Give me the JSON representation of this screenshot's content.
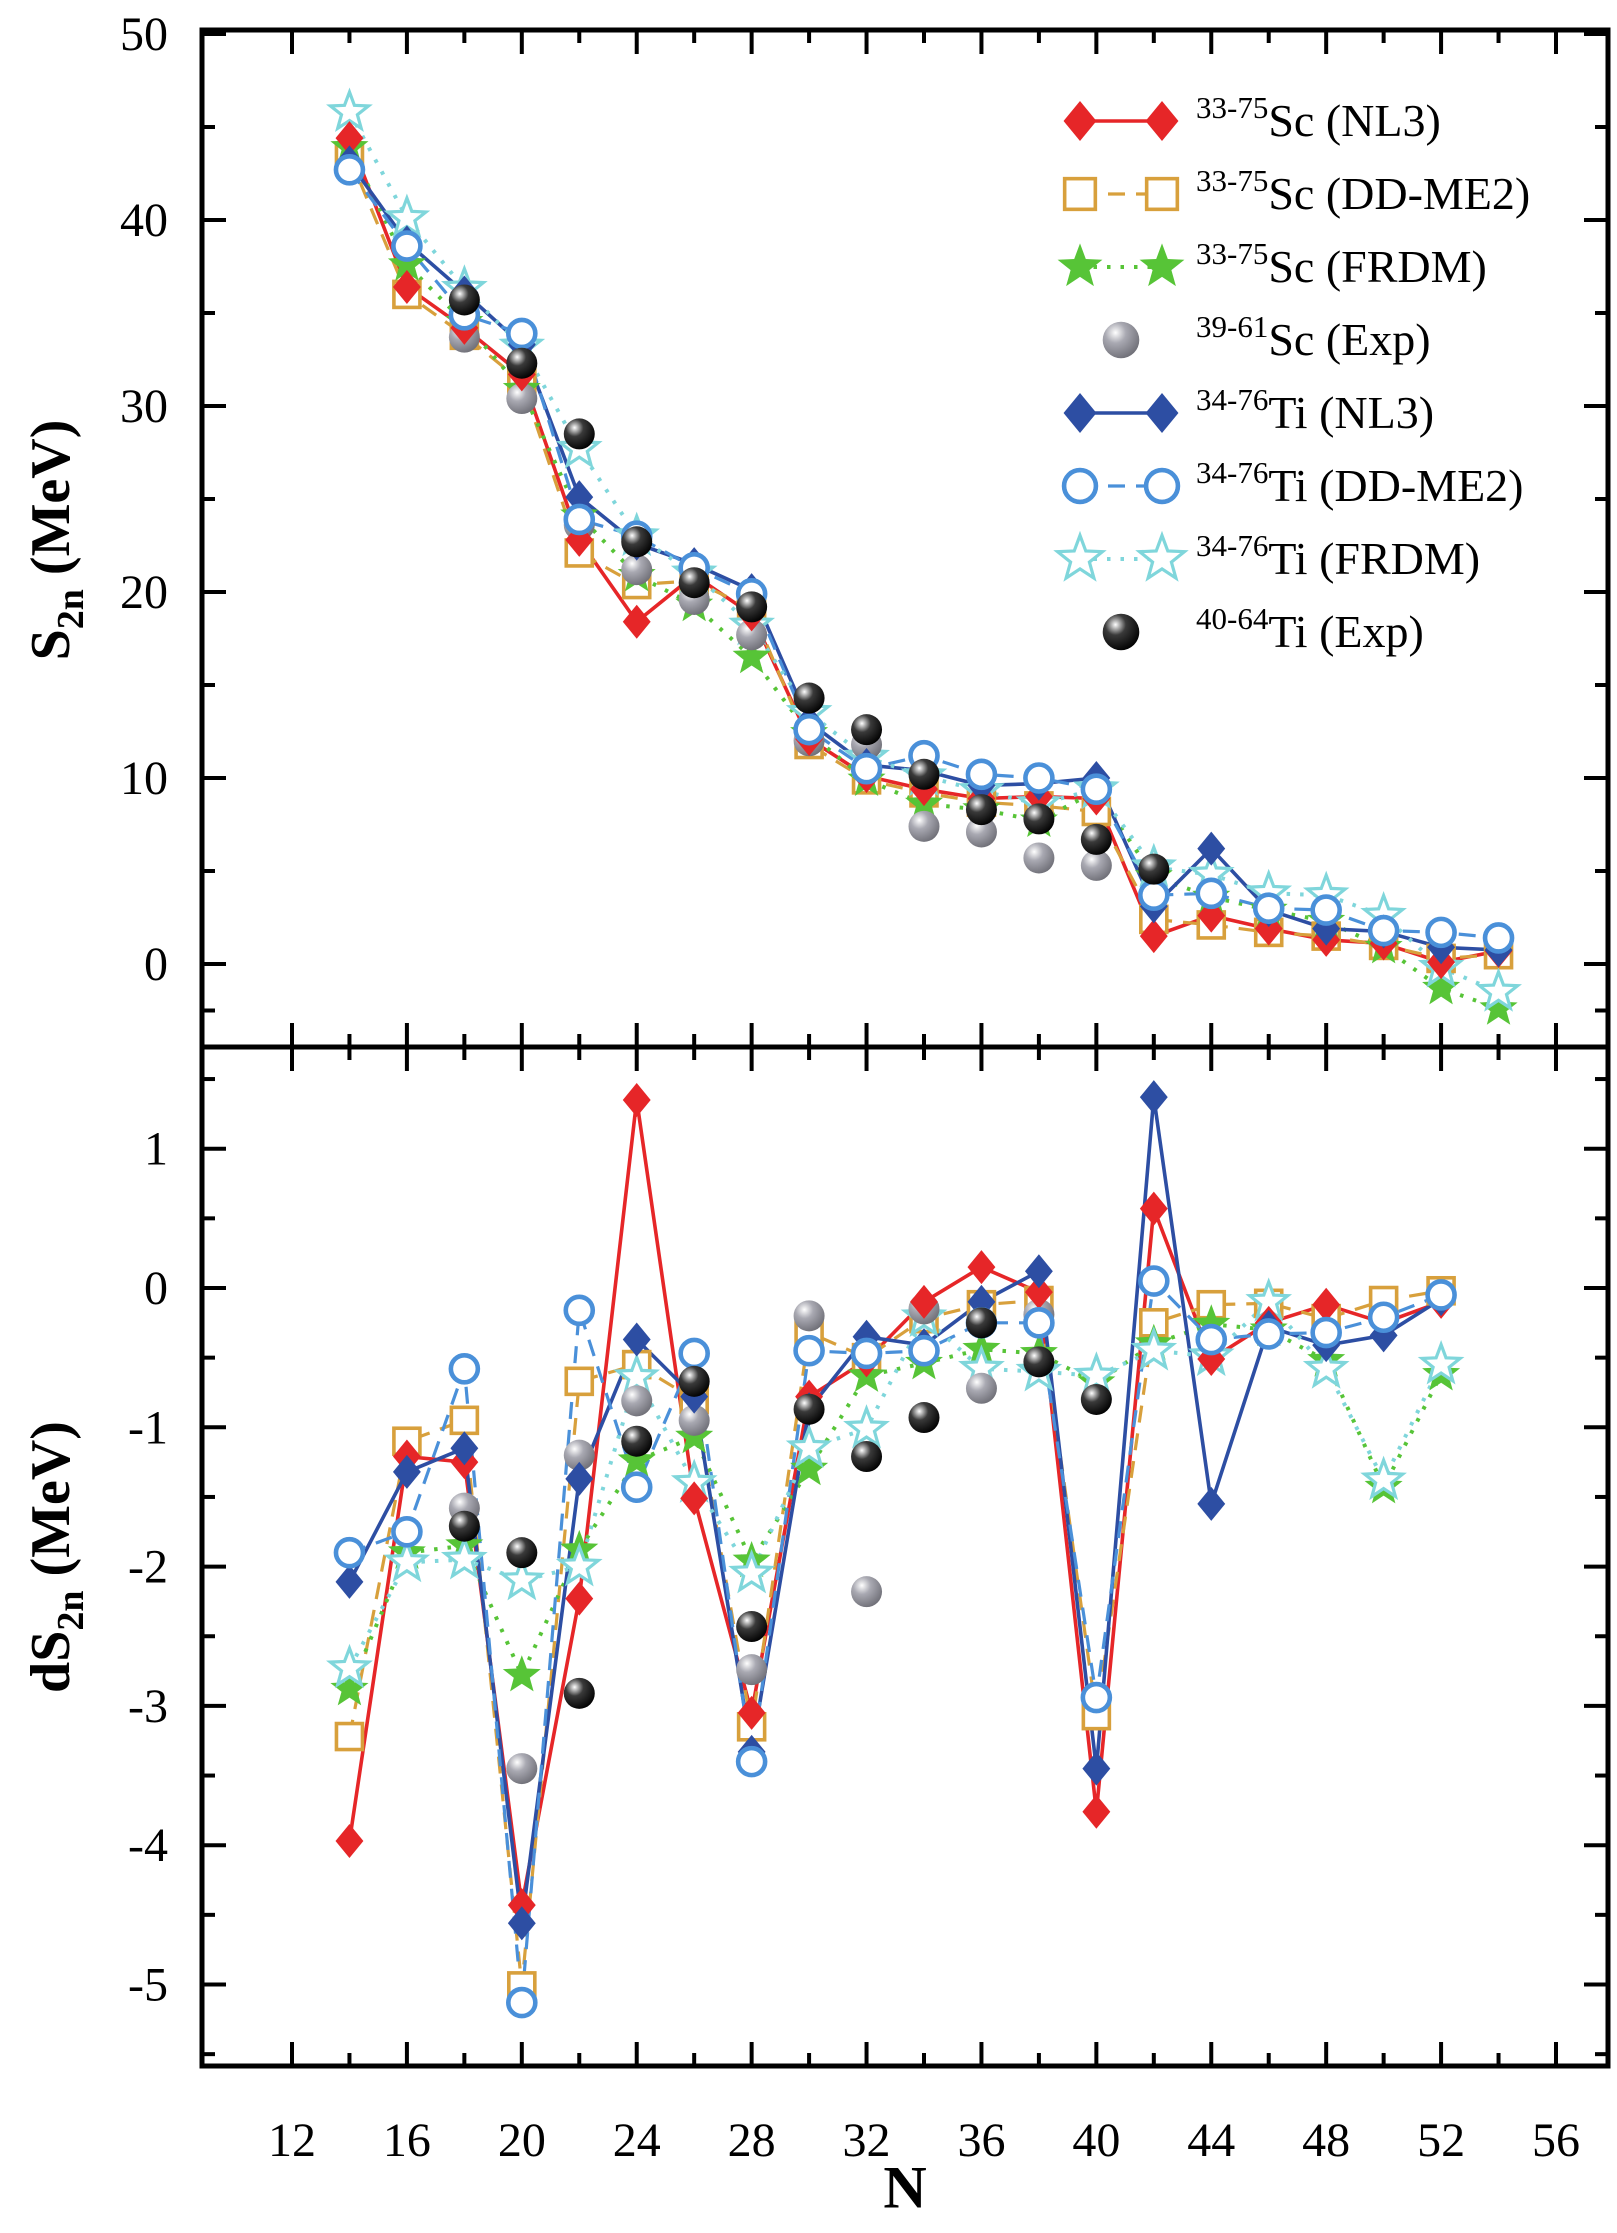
{
  "figure": {
    "x_title": "N",
    "top_y_title": {
      "main": "S",
      "sub": "2n",
      "unit": " (MeV)"
    },
    "bottom_y_title": {
      "main": "dS",
      "sub": "2n",
      "unit": " (MeV)"
    },
    "x_ticks": [
      12,
      16,
      20,
      24,
      28,
      32,
      36,
      40,
      44,
      48,
      52,
      56
    ],
    "top_y_ticks": [
      0,
      10,
      20,
      30,
      40,
      50
    ],
    "bottom_y_ticks": [
      1,
      0,
      -1,
      -2,
      -3,
      -4,
      -5
    ]
  },
  "legend": {
    "items": [
      {
        "sup": "33-75",
        "base": "Sc (NL3)"
      },
      {
        "sup": "33-75",
        "base": "Sc (DD-ME2)"
      },
      {
        "sup": "33-75",
        "base": "Sc (FRDM)"
      },
      {
        "sup": "39-61",
        "base": "Sc (Exp)"
      },
      {
        "sup": "34-76",
        "base": "Ti (NL3)"
      },
      {
        "sup": "34-76",
        "base": "Ti (DD-ME2)"
      },
      {
        "sup": "34-76",
        "base": "Ti (FRDM)"
      },
      {
        "sup": "40-64",
        "base": "Ti (Exp)"
      }
    ]
  },
  "chart_data": [
    {
      "panel": "top",
      "type": "line",
      "title": "",
      "xlabel": "N",
      "ylabel": "S2n (MeV)",
      "xlim": [
        12,
        56
      ],
      "ylim": [
        -4.4,
        50
      ],
      "grid": false,
      "legend_position": "upper right",
      "series": [
        {
          "name": "Sc-NL3",
          "marker": "diamond-filled",
          "color": "#e62628",
          "line": "solid",
          "x": [
            14,
            16,
            18,
            20,
            22,
            24,
            26,
            28,
            30,
            32,
            34,
            36,
            38,
            40,
            42,
            44,
            46,
            48,
            50,
            52,
            54
          ],
          "y": [
            44.4,
            36.4,
            34.2,
            31.7,
            22.8,
            18.4,
            20.9,
            18.8,
            12.1,
            10.1,
            9.4,
            8.9,
            9.0,
            8.9,
            1.5,
            2.6,
            1.9,
            1.3,
            1.1,
            0.1,
            0.7
          ]
        },
        {
          "name": "Sc-DDME2",
          "marker": "square-open",
          "color": "#d8a03c",
          "line": "dashed",
          "x": [
            14,
            16,
            18,
            20,
            22,
            24,
            26,
            28,
            30,
            32,
            34,
            36,
            38,
            40,
            42,
            44,
            46,
            48,
            50,
            52,
            54
          ],
          "y": [
            43.4,
            36.0,
            33.8,
            31.3,
            22.1,
            20.4,
            20.6,
            19.1,
            11.8,
            9.9,
            9.2,
            8.7,
            8.5,
            8.2,
            2.4,
            2.1,
            1.7,
            1.5,
            1.0,
            0.3,
            0.5
          ]
        },
        {
          "name": "Sc-FRDM",
          "marker": "star-filled",
          "color": "#57c437",
          "line": "dotted",
          "x": [
            14,
            16,
            18,
            20,
            22,
            24,
            26,
            28,
            30,
            32,
            34,
            36,
            38,
            40,
            42,
            44,
            46,
            48,
            50,
            52,
            54
          ],
          "y": [
            43.9,
            37.6,
            34.5,
            30.9,
            24.1,
            20.9,
            19.3,
            16.5,
            12.4,
            9.9,
            8.6,
            8.3,
            7.7,
            9.3,
            4.7,
            3.6,
            2.9,
            2.3,
            0.9,
            -1.3,
            -2.4
          ]
        },
        {
          "name": "Sc-Exp",
          "marker": "sphere-gray",
          "color": "#8a8a94",
          "line": "none",
          "x": [
            18,
            20,
            22,
            24,
            26,
            28,
            30,
            32,
            34,
            36,
            38,
            40
          ],
          "y": [
            33.7,
            30.4,
            23.6,
            21.2,
            19.6,
            17.7,
            12.0,
            11.8,
            7.4,
            7.1,
            5.7,
            5.3
          ]
        },
        {
          "name": "Ti-NL3",
          "marker": "diamond-filled",
          "color": "#2d4ea3",
          "line": "solid",
          "x": [
            14,
            16,
            18,
            20,
            22,
            24,
            26,
            28,
            30,
            32,
            34,
            36,
            38,
            40,
            42,
            44,
            46,
            48,
            50,
            52,
            54
          ],
          "y": [
            43.1,
            38.8,
            36.1,
            33.3,
            25.1,
            22.6,
            21.5,
            20.1,
            13.0,
            10.7,
            10.4,
            9.6,
            9.7,
            10.0,
            3.1,
            6.2,
            2.9,
            1.9,
            1.75,
            0.9,
            0.75
          ]
        },
        {
          "name": "Ti-DDME2",
          "marker": "circle-open",
          "color": "#4a90d9",
          "line": "dashed",
          "x": [
            14,
            16,
            18,
            20,
            22,
            24,
            26,
            28,
            30,
            32,
            34,
            36,
            38,
            40,
            42,
            44,
            46,
            48,
            50,
            52,
            54
          ],
          "y": [
            42.7,
            38.6,
            34.9,
            33.9,
            23.9,
            23.0,
            21.3,
            19.9,
            12.6,
            10.5,
            11.2,
            10.2,
            10.0,
            9.4,
            3.7,
            3.8,
            3.0,
            2.9,
            1.8,
            1.7,
            1.4
          ]
        },
        {
          "name": "Ti-FRDM",
          "marker": "star-open",
          "color": "#7fd6db",
          "line": "dotted",
          "x": [
            14,
            16,
            18,
            20,
            22,
            24,
            26,
            28,
            30,
            32,
            34,
            36,
            38,
            40,
            42,
            44,
            46,
            48,
            50,
            52,
            54
          ],
          "y": [
            45.8,
            40.1,
            36.3,
            33.2,
            27.7,
            23.0,
            21.0,
            18.2,
            13.5,
            11.1,
            10.1,
            9.3,
            8.6,
            9.4,
            5.2,
            4.8,
            3.8,
            3.7,
            2.6,
            -0.2,
            -1.5
          ]
        },
        {
          "name": "Ti-Exp",
          "marker": "sphere-black",
          "color": "#111111",
          "line": "none",
          "x": [
            18,
            20,
            22,
            24,
            26,
            28,
            30,
            32,
            34,
            36,
            38,
            40,
            42
          ],
          "y": [
            35.7,
            32.3,
            28.5,
            22.7,
            20.5,
            19.2,
            14.3,
            12.6,
            10.2,
            8.3,
            7.8,
            6.7,
            5.1
          ]
        }
      ]
    },
    {
      "panel": "bottom",
      "type": "line",
      "title": "",
      "xlabel": "N",
      "ylabel": "dS2n (MeV)",
      "xlim": [
        12,
        56
      ],
      "ylim": [
        -5.6,
        1.7
      ],
      "grid": false,
      "legend_position": "none",
      "series": [
        {
          "name": "Sc-NL3",
          "marker": "diamond-filled",
          "color": "#e62628",
          "line": "solid",
          "x": [
            14,
            16,
            18,
            20,
            22,
            24,
            26,
            28,
            30,
            32,
            34,
            36,
            38,
            40,
            42,
            44,
            46,
            48,
            50,
            52
          ],
          "y": [
            -3.97,
            -1.21,
            -1.25,
            -4.43,
            -2.23,
            1.35,
            -1.51,
            -3.05,
            -0.78,
            -0.52,
            -0.1,
            0.15,
            -0.03,
            -3.76,
            0.57,
            -0.51,
            -0.25,
            -0.12,
            -0.25,
            -0.1
          ]
        },
        {
          "name": "Sc-DDME2",
          "marker": "square-open",
          "color": "#d8a03c",
          "line": "dashed",
          "x": [
            14,
            16,
            18,
            20,
            22,
            24,
            26,
            28,
            30,
            32,
            34,
            36,
            38,
            40,
            42,
            44,
            46,
            48,
            50,
            52
          ],
          "y": [
            -3.22,
            -1.1,
            -0.95,
            -5.01,
            -0.67,
            -0.55,
            -0.8,
            -3.15,
            -0.32,
            -0.5,
            -0.22,
            -0.12,
            -0.09,
            -3.07,
            -0.25,
            -0.12,
            -0.11,
            -0.22,
            -0.09,
            -0.02
          ]
        },
        {
          "name": "Sc-FRDM",
          "marker": "star-filled",
          "color": "#57c437",
          "line": "dotted",
          "x": [
            14,
            16,
            18,
            20,
            22,
            24,
            26,
            28,
            30,
            32,
            34,
            36,
            38,
            40,
            42,
            44,
            46,
            48,
            50,
            52
          ],
          "y": [
            -2.88,
            -1.9,
            -1.85,
            -2.78,
            -1.88,
            -1.24,
            -1.07,
            -1.96,
            -1.3,
            -0.63,
            -0.54,
            -0.44,
            -0.47,
            -0.68,
            -0.4,
            -0.26,
            -0.3,
            -0.52,
            -1.43,
            -0.62
          ]
        },
        {
          "name": "Sc-Exp",
          "marker": "sphere-gray",
          "color": "#8a8a94",
          "line": "none",
          "x": [
            18,
            20,
            22,
            24,
            26,
            28,
            30,
            32,
            34,
            36,
            38
          ],
          "y": [
            -1.58,
            -3.45,
            -1.2,
            -0.81,
            -0.95,
            -2.74,
            -0.2,
            -2.18,
            -0.15,
            -0.72,
            -0.19
          ]
        },
        {
          "name": "Ti-NL3",
          "marker": "diamond-filled",
          "color": "#2d4ea3",
          "line": "solid",
          "x": [
            14,
            16,
            18,
            20,
            22,
            24,
            26,
            28,
            30,
            32,
            34,
            36,
            38,
            40,
            42,
            44,
            46,
            48,
            50,
            52
          ],
          "y": [
            -2.11,
            -1.32,
            -1.15,
            -4.56,
            -1.37,
            -0.37,
            -0.78,
            -3.33,
            -0.87,
            -0.35,
            -0.41,
            -0.1,
            0.12,
            -3.45,
            1.37,
            -1.55,
            -0.28,
            -0.41,
            -0.34,
            -0.08
          ]
        },
        {
          "name": "Ti-DDME2",
          "marker": "circle-open",
          "color": "#4a90d9",
          "line": "dashed",
          "x": [
            14,
            16,
            18,
            20,
            22,
            24,
            26,
            28,
            30,
            32,
            34,
            36,
            38,
            40,
            42,
            44,
            46,
            48,
            50,
            52
          ],
          "y": [
            -1.9,
            -1.75,
            -0.58,
            -5.13,
            -0.16,
            -1.43,
            -0.47,
            -3.4,
            -0.45,
            -0.47,
            -0.45,
            -0.25,
            -0.25,
            -2.94,
            0.05,
            -0.37,
            -0.33,
            -0.32,
            -0.21,
            -0.05
          ]
        },
        {
          "name": "Ti-FRDM",
          "marker": "star-open",
          "color": "#7fd6db",
          "line": "dotted",
          "x": [
            14,
            16,
            18,
            20,
            22,
            24,
            26,
            28,
            30,
            32,
            34,
            36,
            38,
            40,
            42,
            44,
            46,
            48,
            50,
            52
          ],
          "y": [
            -2.73,
            -1.97,
            -1.95,
            -2.1,
            -2.0,
            -0.64,
            -1.4,
            -2.05,
            -1.15,
            -1.01,
            -0.21,
            -0.58,
            -0.6,
            -0.63,
            -0.45,
            -0.49,
            -0.1,
            -0.58,
            -1.38,
            -0.55
          ]
        },
        {
          "name": "Ti-Exp",
          "marker": "sphere-black",
          "color": "#111111",
          "line": "none",
          "x": [
            18,
            20,
            22,
            24,
            26,
            28,
            30,
            32,
            34,
            36,
            38,
            40
          ],
          "y": [
            -1.71,
            -1.9,
            -2.91,
            -1.1,
            -0.67,
            -2.43,
            -0.87,
            -1.21,
            -0.93,
            -0.25,
            -0.53,
            -0.8
          ]
        }
      ]
    }
  ]
}
